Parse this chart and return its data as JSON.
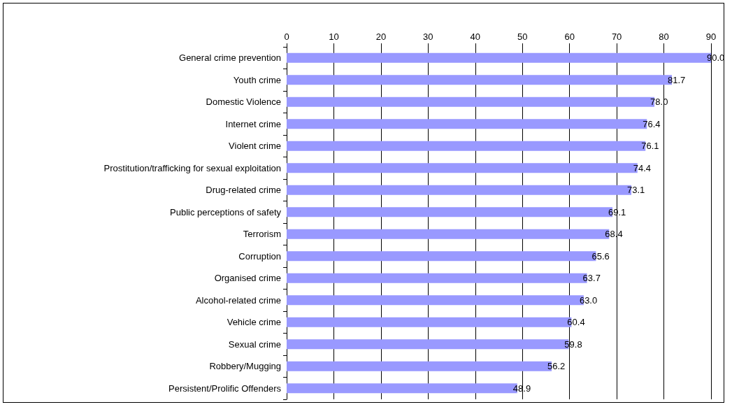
{
  "chart_data": {
    "type": "bar",
    "orientation": "horizontal",
    "categories": [
      "General crime prevention",
      "Youth crime",
      "Domestic Violence",
      "Internet crime",
      "Violent crime",
      "Prostitution/trafficking for sexual exploitation",
      "Drug-related crime",
      "Public perceptions of safety",
      "Terrorism",
      "Corruption",
      "Organised crime",
      "Alcohol-related crime",
      "Vehicle crime",
      "Sexual crime",
      "Robbery/Mugging",
      "Persistent/Prolific Offenders"
    ],
    "values": [
      90.0,
      81.7,
      78.0,
      76.4,
      76.1,
      74.4,
      73.1,
      69.1,
      68.4,
      65.6,
      63.7,
      63.0,
      60.4,
      59.8,
      56.2,
      48.9
    ],
    "color": "#9999ff",
    "xlim": [
      0,
      90
    ],
    "xticks": [
      0,
      10,
      20,
      30,
      40,
      50,
      60,
      70,
      80,
      90
    ],
    "value_labels": [
      "90.0",
      "81.7",
      "78.0",
      "76.4",
      "76.1",
      "74.4",
      "73.1",
      "69.1",
      "68.4",
      "65.6",
      "63.7",
      "63.0",
      "60.4",
      "59.8",
      "56.2",
      "48.9"
    ],
    "grid": "x"
  }
}
